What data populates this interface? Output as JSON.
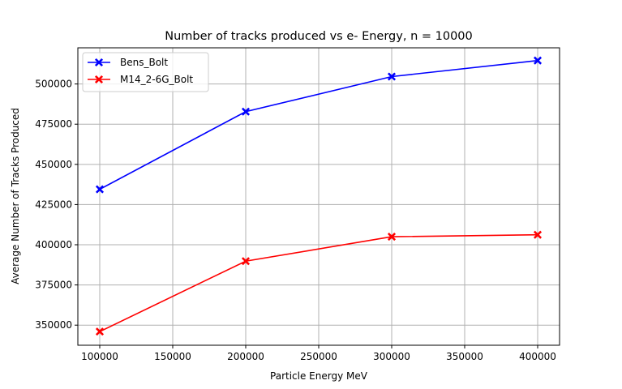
{
  "chart_data": {
    "type": "line",
    "title": "Number of tracks produced vs e- Energy, n = 10000",
    "xlabel": "Particle Energy MeV",
    "ylabel": "Average Number of Tracks Produced",
    "x": [
      100000,
      200000,
      300000,
      400000
    ],
    "xlim": [
      85000,
      415000
    ],
    "ylim": [
      337500,
      522500
    ],
    "xticks": [
      100000,
      150000,
      200000,
      250000,
      300000,
      350000,
      400000
    ],
    "yticks": [
      350000,
      375000,
      400000,
      425000,
      450000,
      475000,
      500000
    ],
    "grid": true,
    "legend": "top-left",
    "series": [
      {
        "name": "Bens_Bolt",
        "color": "#0000ff",
        "marker": "x",
        "values": [
          434500,
          482800,
          504600,
          514600
        ]
      },
      {
        "name": "M14_2-6G_Bolt",
        "color": "#ff0000",
        "marker": "x",
        "values": [
          346000,
          389800,
          405000,
          406200
        ]
      }
    ]
  }
}
